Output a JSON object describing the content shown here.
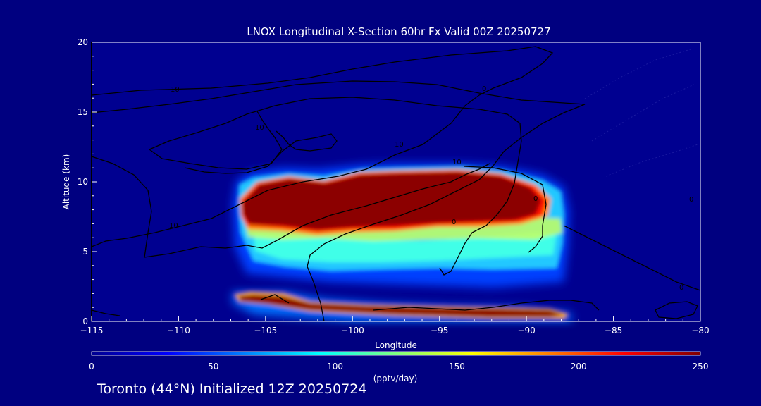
{
  "chart_data": {
    "type": "heatmap",
    "title": "LNOX Longitudinal X-Section 60hr  Fx Valid 00Z 20250727",
    "xlabel": "Longitude",
    "ylabel": "Altitude (km)",
    "xlim": [
      -115,
      -80
    ],
    "ylim": [
      0,
      20
    ],
    "x_ticks": [
      -115,
      -110,
      -105,
      -100,
      -95,
      -90,
      -85,
      -80
    ],
    "x_tick_labels": [
      "−115",
      "−110",
      "−105",
      "−100",
      "−95",
      "−90",
      "−85",
      "−80"
    ],
    "y_ticks": [
      0,
      5,
      10,
      15,
      20
    ],
    "y_tick_labels": [
      "0",
      "5",
      "10",
      "15",
      "20"
    ],
    "colorbar": {
      "label": "(pptv/day)",
      "range": [
        0,
        250
      ],
      "ticks": [
        0,
        50,
        100,
        150,
        200,
        250
      ],
      "tick_labels": [
        "0",
        "50",
        "100",
        "150",
        "200",
        "250"
      ],
      "colors": [
        "#000090",
        "#0000ff",
        "#0080ff",
        "#00ffff",
        "#80ff80",
        "#ffff00",
        "#ff8000",
        "#ff0000",
        "#800000"
      ]
    },
    "field_regions": [
      {
        "name": "upper-plume-outer",
        "lon": [
          -106.8,
          -87.2
        ],
        "alt": [
          4.0,
          11.0
        ],
        "value": 80
      },
      {
        "name": "upper-plume-mid",
        "lon": [
          -106.3,
          -87.6
        ],
        "alt": [
          5.0,
          10.8
        ],
        "value": 120
      },
      {
        "name": "upper-plume-core",
        "lon": [
          -106.5,
          -88.0
        ],
        "alt": [
          6.5,
          10.4
        ],
        "value": 250
      },
      {
        "name": "lower-band-core",
        "lon": [
          -107.0,
          -88.5
        ],
        "alt": [
          0.4,
          2.2
        ],
        "value": 250
      }
    ],
    "contour_labels": [
      "10",
      "10",
      "10",
      "10",
      "10",
      "0",
      "0",
      "0",
      "0",
      "0"
    ]
  },
  "footer": "Toronto (44°N) Initialized 12Z 20250724"
}
